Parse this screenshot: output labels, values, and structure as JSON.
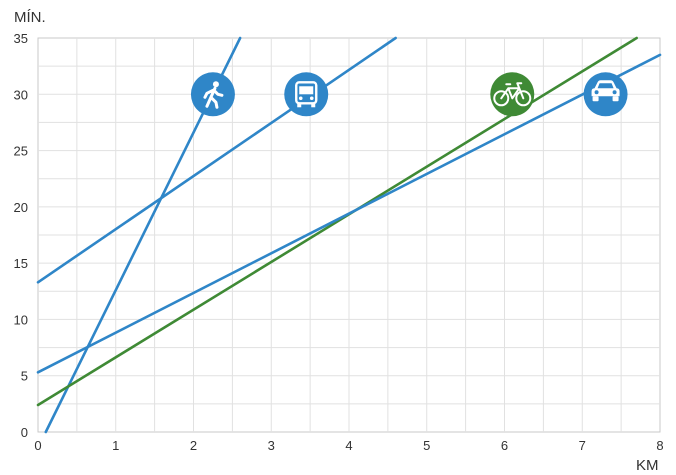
{
  "chart_data": {
    "type": "line",
    "xlabel": "KM",
    "ylabel": "MÍN.",
    "xlim": [
      0,
      8
    ],
    "ylim": [
      0,
      35
    ],
    "x_ticks": [
      "0",
      "1",
      "2",
      "3",
      "4",
      "5",
      "6",
      "7",
      "8"
    ],
    "y_ticks": [
      "0",
      "5",
      "10",
      "15",
      "20",
      "25",
      "30",
      "35"
    ],
    "grid": true,
    "series": [
      {
        "icon": "walking-person-icon",
        "color": "#2f86c8",
        "x": [
          0.1,
          2.6
        ],
        "y": [
          0,
          35
        ]
      },
      {
        "icon": "bus-icon",
        "color": "#2f86c8",
        "x": [
          0,
          4.6
        ],
        "y": [
          13.3,
          35
        ]
      },
      {
        "icon": "bicycle-icon",
        "color": "#3f8a35",
        "x": [
          0,
          7.7
        ],
        "y": [
          2.4,
          35
        ]
      },
      {
        "icon": "car-icon",
        "color": "#2f86c8",
        "x": [
          0,
          8
        ],
        "y": [
          5.3,
          33.5
        ]
      }
    ],
    "markers": [
      {
        "icon": "walking-person-icon",
        "color": "#2f86c8",
        "x": 2.25,
        "y": 30
      },
      {
        "icon": "bus-icon",
        "color": "#2f86c8",
        "x": 3.45,
        "y": 30
      },
      {
        "icon": "bicycle-icon",
        "color": "#3f8a35",
        "x": 6.1,
        "y": 30
      },
      {
        "icon": "car-icon",
        "color": "#2f86c8",
        "x": 7.3,
        "y": 30
      }
    ]
  }
}
